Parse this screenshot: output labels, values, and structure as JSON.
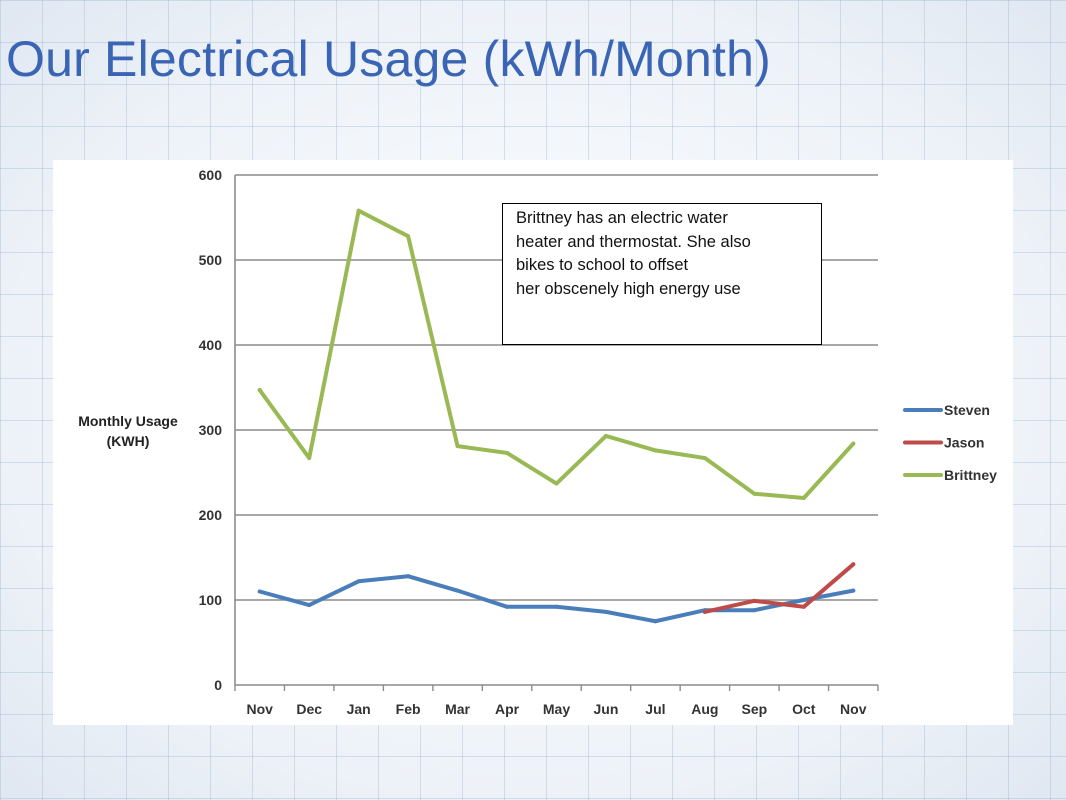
{
  "slide": {
    "title": "Our Electrical Usage (kWh/Month)"
  },
  "colors": {
    "title": "#3a64b4",
    "steven": "#4a7ebb",
    "jason": "#be4b48",
    "brittney": "#98b954",
    "grid": "#8c8c8c"
  },
  "note": {
    "lines": [
      "Brittney has an electric water",
      "heater and thermostat. She also",
      "bikes to school to offset",
      "her obscenely high energy use"
    ]
  },
  "chart_data": {
    "type": "line",
    "categories": [
      "Nov",
      "Dec",
      "Jan",
      "Feb",
      "Mar",
      "Apr",
      "May",
      "Jun",
      "Jul",
      "Aug",
      "Sep",
      "Oct",
      "Nov"
    ],
    "ylabel_lines": [
      "Monthly Usage",
      "(KWH)"
    ],
    "ylim": [
      0,
      600
    ],
    "yticks": [
      0,
      100,
      200,
      300,
      400,
      500,
      600
    ],
    "grid": true,
    "legend_position": "right",
    "series": [
      {
        "name": "Steven",
        "color": "#4a7ebb",
        "values": [
          110,
          94,
          122,
          128,
          111,
          92,
          92,
          86,
          75,
          88,
          88,
          100,
          111
        ]
      },
      {
        "name": "Jason",
        "color": "#be4b48",
        "values": [
          null,
          null,
          null,
          null,
          null,
          null,
          null,
          null,
          null,
          86,
          99,
          92,
          142
        ]
      },
      {
        "name": "Brittney",
        "color": "#98b954",
        "values": [
          347,
          267,
          558,
          528,
          281,
          273,
          237,
          293,
          276,
          267,
          225,
          220,
          284
        ]
      }
    ]
  }
}
